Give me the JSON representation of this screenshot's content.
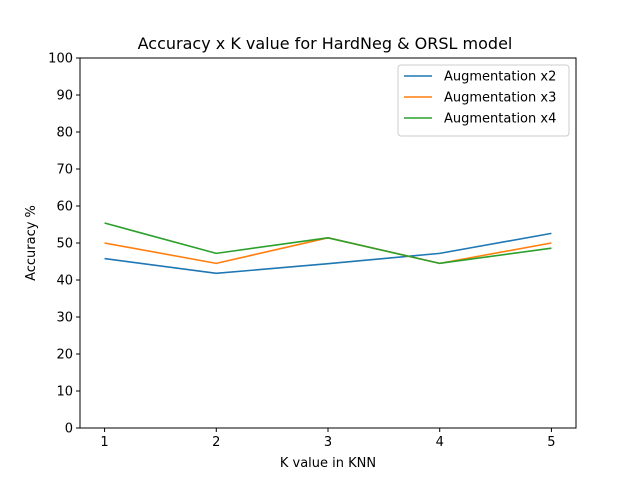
{
  "chart_data": {
    "type": "line",
    "title": "Accuracy x K value for HardNeg & ORSL model",
    "xlabel": "K value in KNN",
    "ylabel": "Accuracy %",
    "x": [
      1,
      2,
      3,
      4,
      5
    ],
    "xlim": [
      0.78,
      5.22
    ],
    "ylim": [
      0,
      100
    ],
    "yticks": [
      0,
      10,
      20,
      30,
      40,
      50,
      60,
      70,
      80,
      90,
      100
    ],
    "grid": false,
    "legend_position": "top-right",
    "series": [
      {
        "name": "Augmentation x2",
        "color": "#1f77b4",
        "values": [
          45.8,
          41.8,
          44.4,
          47.2,
          52.6
        ]
      },
      {
        "name": "Augmentation x3",
        "color": "#ff7f0e",
        "values": [
          50.0,
          44.5,
          51.4,
          44.5,
          50.0
        ]
      },
      {
        "name": "Augmentation x4",
        "color": "#2ca02c",
        "values": [
          55.4,
          47.2,
          51.4,
          44.5,
          48.6
        ]
      }
    ]
  }
}
